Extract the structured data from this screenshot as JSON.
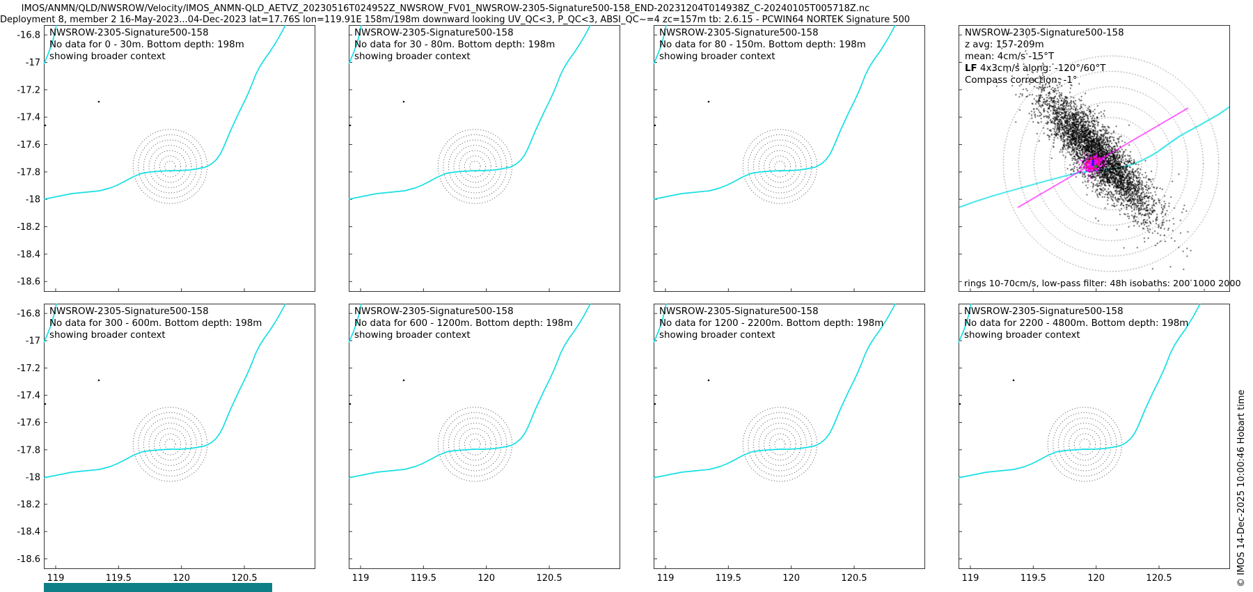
{
  "header": {
    "line1": "IMOS/ANMN/QLD/NWSROW/Velocity/IMOS_ANMN-QLD_AETVZ_20230516T024952Z_NWSROW_FV01_NWSROW-2305-Signature500-158_END-20231204T014938Z_C-20240105T005718Z.nc",
    "line2": "Deployment 8, member 2 16-May-2023...04-Dec-2023 lat=17.76S lon=119.91E 158m/198m downward looking UV_QC<3, P_QC<3, ABSI_QC~=4 zc=157m tb: 2.6.15 - PCWIN64 NORTEK Signature 500"
  },
  "axes": {
    "x_ticks": [
      "119",
      "119.5",
      "120",
      "120.5"
    ],
    "y_ticks": [
      "-16.8",
      "-17",
      "-17.2",
      "-17.4",
      "-17.6",
      "-17.8",
      "-18",
      "-18.2",
      "-18.4",
      "-18.6"
    ]
  },
  "panels": [
    {
      "title1": "NWSROW-2305-Signature500-158",
      "title2": "No data for 0 - 30m. Bottom depth: 198m",
      "title3": "showing broader context"
    },
    {
      "title1": "NWSROW-2305-Signature500-158",
      "title2": "No data for 30 - 80m. Bottom depth: 198m",
      "title3": "showing broader context"
    },
    {
      "title1": "NWSROW-2305-Signature500-158",
      "title2": "No data for 80 - 150m. Bottom depth: 198m",
      "title3": "showing broader context"
    },
    {
      "title1": "NWSROW-2305-Signature500-158",
      "z_avg": "z avg: 157-209m",
      "mean": "mean: 4cm/s -15°T",
      "lf_bold": "LF",
      "lf_rest": " 4x3cm/s along: -120°/60°T",
      "compass": "Compass correction: -1°",
      "footnote": "rings 10-70cm/s, low-pass filter: 48h  isobaths: 200 1000 2000"
    },
    {
      "title1": "NWSROW-2305-Signature500-158",
      "title2": "No data for 300 - 600m. Bottom depth: 198m",
      "title3": "showing broader context"
    },
    {
      "title1": "NWSROW-2305-Signature500-158",
      "title2": "No data for 600 - 1200m. Bottom depth: 198m",
      "title3": "showing broader context"
    },
    {
      "title1": "NWSROW-2305-Signature500-158",
      "title2": "No data for 1200 - 2200m. Bottom depth: 198m",
      "title3": "showing broader context"
    },
    {
      "title1": "NWSROW-2305-Signature500-158",
      "title2": "No data for 2200 - 4800m. Bottom depth: 198m",
      "title3": "showing broader context"
    }
  ],
  "copyright": "© IMOS 14-Dec-2025 10:00:46 Hobart time",
  "colors": {
    "coast": "#16dfe4",
    "rings": "#3a3a3a",
    "scatter": "#000000",
    "magenta": "#ff00ff",
    "red_ellipse": "#ee1111",
    "blue_marker": "#1414e6",
    "green_marker": "#0aa00a",
    "teal_bar": "#0e7f86",
    "axis": "#333333"
  },
  "chart_data": {
    "type": "scatter",
    "layout": "2x4 grid; seven map panels with no data plus one velocity scatter panel (top-right)",
    "map_axes": {
      "xlim": [
        118.91,
        121.06
      ],
      "ylim": [
        -18.68,
        -16.73
      ],
      "x_ticks": [
        119,
        119.5,
        120,
        120.5
      ],
      "y_ticks": [
        -16.8,
        -17,
        -17.2,
        -17.4,
        -17.6,
        -17.8,
        -18,
        -18.2,
        -18.4,
        -18.6
      ],
      "grid": false
    },
    "site": "NWSROW-2305-Signature500-158",
    "mooring_location": {
      "lat": -17.76,
      "lon": 119.91
    },
    "bottom_depth_m": 198,
    "depth_bins_no_data": [
      "0 - 30m",
      "30 - 80m",
      "80 - 150m",
      "300 - 600m",
      "600 - 1200m",
      "1200 - 2200m",
      "2200 - 4800m"
    ],
    "velocity_scatter": {
      "z_avg_range_m": "157-209",
      "mean_speed_cm_s": 4,
      "mean_direction_deg_T": -15,
      "lf_ellipse_cm_s": "4x3",
      "lf_along_deg_T": "-120/60",
      "compass_correction_deg": -1,
      "rings_cm_s": [
        10,
        20,
        30,
        40,
        50,
        60,
        70
      ],
      "low_pass_filter": "48h",
      "isobath_contours_m": [
        200,
        1000,
        2000
      ],
      "scatter_description": "dense black UV scatter ellipse tilted NW-SE, magenta low-pass cluster at origin with red variance ellipse, blue center marker, green marker, magenta principal-axis line"
    }
  }
}
